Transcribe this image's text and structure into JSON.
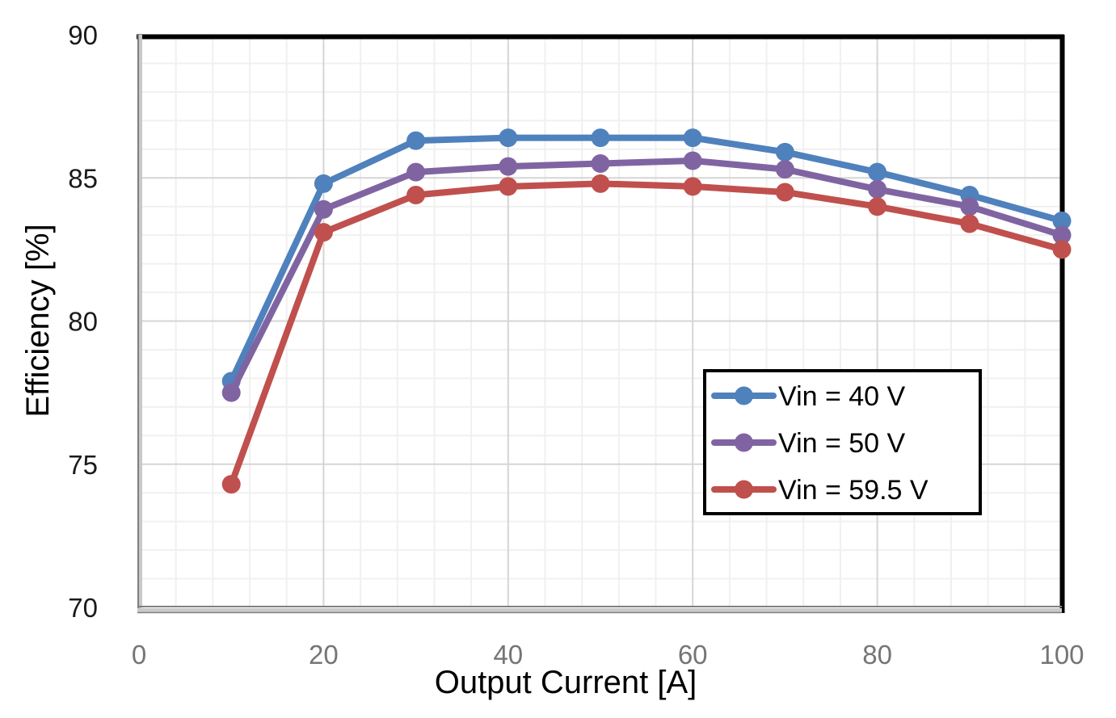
{
  "chart_data": {
    "type": "line",
    "title": "",
    "xlabel": "Output Current [A]",
    "ylabel": "Efficiency [%]",
    "x": [
      10,
      20,
      30,
      40,
      50,
      60,
      70,
      80,
      90,
      100
    ],
    "series": [
      {
        "name": "Vin = 40 V",
        "color": "#4f81bd",
        "values": [
          77.9,
          84.8,
          86.3,
          86.4,
          86.4,
          86.4,
          85.9,
          85.2,
          84.4,
          83.5
        ]
      },
      {
        "name": "Vin = 50 V",
        "color": "#8064a2",
        "values": [
          77.5,
          83.9,
          85.2,
          85.4,
          85.5,
          85.6,
          85.3,
          84.6,
          84.0,
          83.0
        ]
      },
      {
        "name": "Vin = 59.5 V",
        "color": "#c0504d",
        "values": [
          74.3,
          83.1,
          84.4,
          84.7,
          84.8,
          84.7,
          84.5,
          84.0,
          83.4,
          82.5
        ]
      }
    ],
    "xlim": [
      0,
      100
    ],
    "ylim": [
      70,
      90
    ],
    "xticks": [
      0,
      20,
      40,
      60,
      80,
      100
    ],
    "yticks": [
      70,
      75,
      80,
      85,
      90
    ],
    "x_minor_step": 4,
    "y_minor_step": 1,
    "grid": true,
    "legend_position": "inside-right",
    "marker": "circle",
    "line_width": 8,
    "marker_radius": 11.5
  },
  "colors": {
    "background": "#ffffff",
    "plot_border": "#000000",
    "axis_line_dark": "#7f7f7f",
    "axis_line_light": "#c9c9c9",
    "major_grid": "#d5d5d5",
    "minor_grid": "#f0f0f0",
    "x_tick_label": "#757575",
    "y_tick_label": "#1a1a1a",
    "legend_border": "#000000",
    "legend_fill": "#ffffff"
  }
}
